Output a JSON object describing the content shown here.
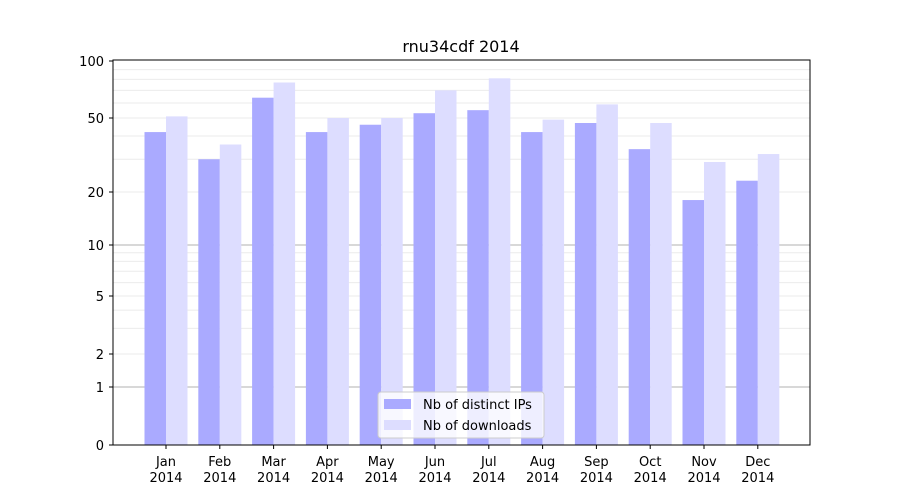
{
  "chart_data": {
    "type": "bar",
    "title": "rnu34cdf 2014",
    "xlabel": "",
    "ylabel": "",
    "yscale": "symlog",
    "ylim": [
      0,
      100
    ],
    "yticks": [
      0,
      1,
      2,
      5,
      10,
      20,
      50,
      100
    ],
    "ytick_labels": [
      "0",
      "1",
      "2",
      "5",
      "10",
      "20",
      "50",
      "100"
    ],
    "categories": [
      "Jan\n2014",
      "Feb\n2014",
      "Mar\n2014",
      "Apr\n2014",
      "May\n2014",
      "Jun\n2014",
      "Jul\n2014",
      "Aug\n2014",
      "Sep\n2014",
      "Oct\n2014",
      "Nov\n2014",
      "Dec\n2014"
    ],
    "series": [
      {
        "name": "Nb of distinct IPs",
        "color": "#aaaaff",
        "values": [
          42,
          30,
          64,
          42,
          46,
          53,
          55,
          42,
          47,
          34,
          18,
          23
        ]
      },
      {
        "name": "Nb of downloads",
        "color": "#ddddff",
        "values": [
          51,
          36,
          77,
          50,
          50,
          70,
          81,
          49,
          59,
          47,
          29,
          32
        ]
      }
    ],
    "legend_position": "lower-center",
    "grid": true
  }
}
